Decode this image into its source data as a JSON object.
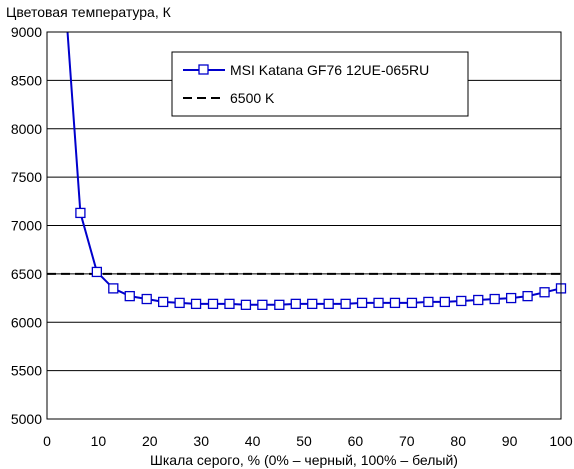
{
  "chart_data": {
    "type": "line",
    "title": "",
    "ylabel": "Цветовая температура, К",
    "xlabel": "Шкала серого, % (0% – черный, 100% – белый)",
    "xlim": [
      0,
      100
    ],
    "ylim": [
      5000,
      9000
    ],
    "xticks": [
      0,
      10,
      20,
      30,
      40,
      50,
      60,
      70,
      80,
      90,
      100
    ],
    "yticks": [
      5000,
      5500,
      6000,
      6500,
      7000,
      7500,
      8000,
      8500,
      9000
    ],
    "grid": "horizontal",
    "legend_placement": "top-center",
    "series": [
      {
        "name": "MSI Katana GF76 12UE-065RU",
        "color": "#0000cc",
        "marker": "square",
        "x": [
          3.2,
          6.5,
          9.7,
          12.9,
          16.1,
          19.4,
          22.6,
          25.8,
          29.0,
          32.3,
          35.5,
          38.7,
          41.9,
          45.2,
          48.4,
          51.6,
          54.8,
          58.1,
          61.3,
          64.5,
          67.7,
          71.0,
          74.2,
          77.4,
          80.6,
          83.9,
          87.1,
          90.3,
          93.5,
          96.8,
          100
        ],
        "y": [
          9600,
          7130,
          6520,
          6350,
          6270,
          6240,
          6210,
          6200,
          6190,
          6190,
          6190,
          6180,
          6180,
          6180,
          6190,
          6190,
          6190,
          6190,
          6200,
          6200,
          6200,
          6200,
          6210,
          6210,
          6220,
          6230,
          6240,
          6250,
          6270,
          6310,
          6350
        ]
      }
    ],
    "reference_lines": [
      {
        "name": "6500 K",
        "y": 6500,
        "style": "dashed",
        "color": "#000000"
      }
    ]
  }
}
